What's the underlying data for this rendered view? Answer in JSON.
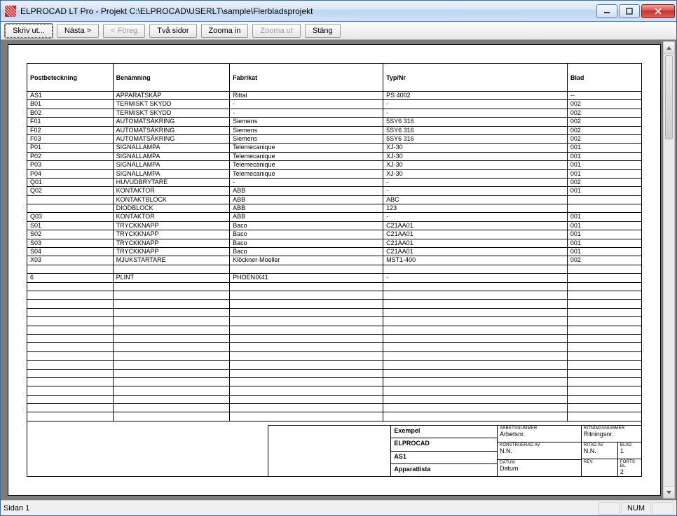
{
  "window": {
    "title": "ELPROCAD LT Pro - Projekt C:\\ELPROCAD\\USERLT\\sample\\Flerbladsprojekt"
  },
  "toolbar": {
    "print": "Skriv ut...",
    "next": "Nästa >",
    "prev": "< Föreg",
    "twoPages": "Två sidor",
    "zoomIn": "Zooma in",
    "zoomOut": "Zooma ut",
    "close": "Stäng"
  },
  "table": {
    "headers": [
      "Postbeteckning",
      "Benämning",
      "Fabrikat",
      "Typ/Nr",
      "Blad"
    ],
    "rows": [
      [
        "AS1",
        "APPARATSKÅP",
        "Rittal",
        "PS 4002",
        "--"
      ],
      [
        "B01",
        "TERMISKT SKYDD",
        "-",
        "-",
        "002"
      ],
      [
        "B02",
        "TERMISKT SKYDD",
        "-",
        "-",
        "002"
      ],
      [
        "F01",
        "AUTOMATSÄKRING",
        "Siemens",
        "5SY6 316",
        "002"
      ],
      [
        "F02",
        "AUTOMATSÄKRING",
        "Siemens",
        "5SY6 316",
        "002"
      ],
      [
        "F03",
        "AUTOMATSÄKRING",
        "Siemens",
        "5SY6 316",
        "002"
      ],
      [
        "P01",
        "SIGNALLAMPA",
        "Telemecanique",
        "XJ-30",
        "001"
      ],
      [
        "P02",
        "SIGNALLAMPA",
        "Telemecanique",
        "XJ-30",
        "001"
      ],
      [
        "P03",
        "SIGNALLAMPA",
        "Telemecanique",
        "XJ-30",
        "001"
      ],
      [
        "P04",
        "SIGNALLAMPA",
        "Telemecanique",
        "XJ-30",
        "001"
      ],
      [
        "Q01",
        "HUVUDBRYTARE",
        "-",
        "-",
        "002"
      ],
      [
        "Q02",
        "KONTAKTOR",
        "ABB",
        "-",
        "001"
      ],
      [
        "",
        "KONTAKTBLOCK",
        "ABB",
        "ABC",
        ""
      ],
      [
        "",
        "DIODBLOCK",
        "ABB",
        "123",
        ""
      ],
      [
        "Q03",
        "KONTAKTOR",
        "ABB",
        "-",
        "001"
      ],
      [
        "S01",
        "TRYCKKNAPP",
        "Baco",
        "C21AA01",
        "001"
      ],
      [
        "S02",
        "TRYCKKNAPP",
        "Baco",
        "C21AA01",
        "001"
      ],
      [
        "S03",
        "TRYCKKNAPP",
        "Baco",
        "C21AA01",
        "001"
      ],
      [
        "S04",
        "TRYCKKNAPP",
        "Baco",
        "C21AA01",
        "001"
      ],
      [
        "X03",
        "MJUKSTARTARE",
        "Klöckner-Moeller",
        "MST1-400",
        "002"
      ],
      [
        "",
        "",
        "",
        "",
        ""
      ],
      [
        "6",
        "PLINT",
        "PHOENIX41",
        "-",
        ""
      ],
      [
        "",
        "",
        "",
        "",
        ""
      ],
      [
        "",
        "",
        "",
        "",
        ""
      ],
      [
        "",
        "",
        "",
        "",
        ""
      ],
      [
        "",
        "",
        "",
        "",
        ""
      ],
      [
        "",
        "",
        "",
        "",
        ""
      ],
      [
        "",
        "",
        "",
        "",
        ""
      ],
      [
        "",
        "",
        "",
        "",
        ""
      ],
      [
        "",
        "",
        "",
        "",
        ""
      ],
      [
        "",
        "",
        "",
        "",
        ""
      ],
      [
        "",
        "",
        "",
        "",
        ""
      ],
      [
        "",
        "",
        "",
        "",
        ""
      ],
      [
        "",
        "",
        "",
        "",
        ""
      ],
      [
        "",
        "",
        "",
        "",
        ""
      ],
      [
        "",
        "",
        "",
        "",
        ""
      ],
      [
        "",
        "",
        "",
        "",
        ""
      ],
      [
        "",
        "",
        "",
        "",
        ""
      ]
    ]
  },
  "titleblock": {
    "example": "Exempel",
    "elprocad": "ELPROCAD",
    "as1": "AS1",
    "apparatlista": "Apparatlista",
    "arbetsnummer_lbl": "ARBETSNUMMER",
    "arbetsnummer_val": "Arbetsnr.",
    "konstruerad_lbl": "KONSTRUERAD AV",
    "konstruerad_val": "N.N.",
    "datum_lbl": "DATUM",
    "datum_val": "Datum",
    "ritningsnr_lbl": "RITNINGSNUMMER",
    "ritningsnr_val": "Ritningsnr.",
    "ritad_lbl": "RITAD AV",
    "ritad_val": "N.N.",
    "blad_lbl": "BLAD",
    "blad_val": "1",
    "rev_lbl": "REV.",
    "rev_val": "",
    "forts_lbl": "FORTS BL",
    "forts_val": "2"
  },
  "statusbar": {
    "page": "Sidan 1",
    "num": "NUM"
  }
}
